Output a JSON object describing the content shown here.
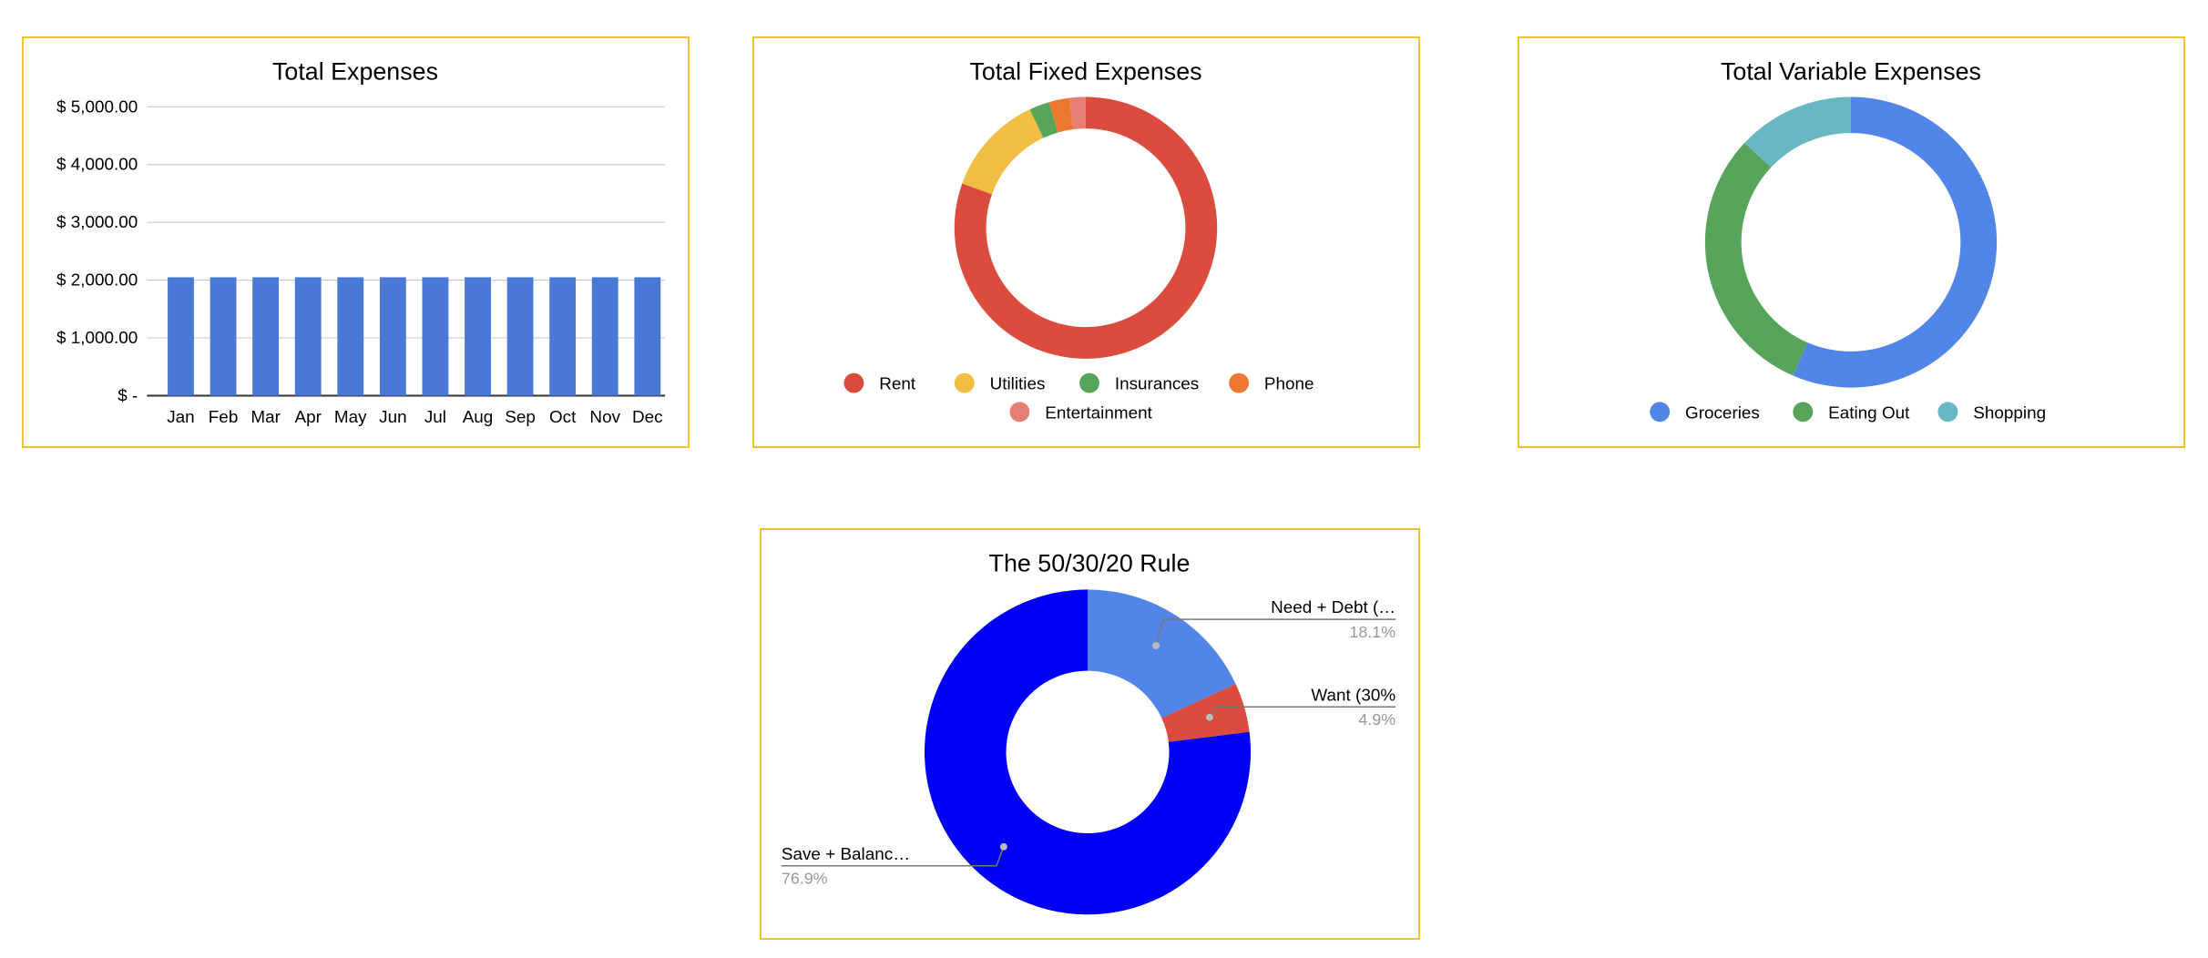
{
  "chart_data": [
    {
      "id": "total-expenses",
      "type": "bar",
      "title": "Total Expenses",
      "categories": [
        "Jan",
        "Feb",
        "Mar",
        "Apr",
        "May",
        "Jun",
        "Jul",
        "Aug",
        "Sep",
        "Oct",
        "Nov",
        "Dec"
      ],
      "series": [
        {
          "name": "Total Expenses",
          "color": "#4a78d6",
          "values": [
            2050,
            2050,
            2050,
            2050,
            2050,
            2050,
            2050,
            2050,
            2050,
            2050,
            2050,
            2050
          ]
        }
      ],
      "ylim": [
        0,
        5000
      ],
      "yticks": [
        0,
        1000,
        2000,
        3000,
        4000,
        5000
      ],
      "ytick_labels": [
        "$ -",
        "$ 1,000.00",
        "$ 2,000.00",
        "$ 3,000.00",
        "$ 4,000.00",
        "$ 5,000.00"
      ],
      "xlabel": "",
      "ylabel": "",
      "grid": true
    },
    {
      "id": "total-fixed-expenses",
      "type": "pie",
      "donut": true,
      "title": "Total Fixed Expenses",
      "slices": [
        {
          "label": "Rent",
          "value": 80.5,
          "color": "#db4c3f"
        },
        {
          "label": "Utilities",
          "value": 12.5,
          "color": "#f1bd42"
        },
        {
          "label": "Insurances",
          "value": 2.5,
          "color": "#57a55a"
        },
        {
          "label": "Phone",
          "value": 2.5,
          "color": "#ee7732"
        },
        {
          "label": "Entertainment",
          "value": 2.0,
          "color": "#e57f76"
        }
      ],
      "legend": "bottom"
    },
    {
      "id": "total-variable-expenses",
      "type": "pie",
      "donut": true,
      "title": "Total Variable Expenses",
      "slices": [
        {
          "label": "Groceries",
          "value": 56.5,
          "color": "#5285e8"
        },
        {
          "label": "Eating Out",
          "value": 30.5,
          "color": "#57a55a"
        },
        {
          "label": "Shopping",
          "value": 13.0,
          "color": "#67b8c2"
        }
      ],
      "legend": "bottom"
    },
    {
      "id": "fifty-thirty-twenty-rule",
      "type": "pie",
      "donut": true,
      "title": "The 50/30/20 Rule",
      "slices": [
        {
          "label": "Need + Debt (…",
          "value": 18.1,
          "pct_label": "18.1%",
          "color": "#5285e8"
        },
        {
          "label": "Want (30%",
          "value": 4.9,
          "pct_label": "4.9%",
          "color": "#db4c3f"
        },
        {
          "label": "Save + Balanc…",
          "value": 76.9,
          "pct_label": "76.9%",
          "color": "#0000f5"
        }
      ],
      "legend": "labeled"
    }
  ]
}
